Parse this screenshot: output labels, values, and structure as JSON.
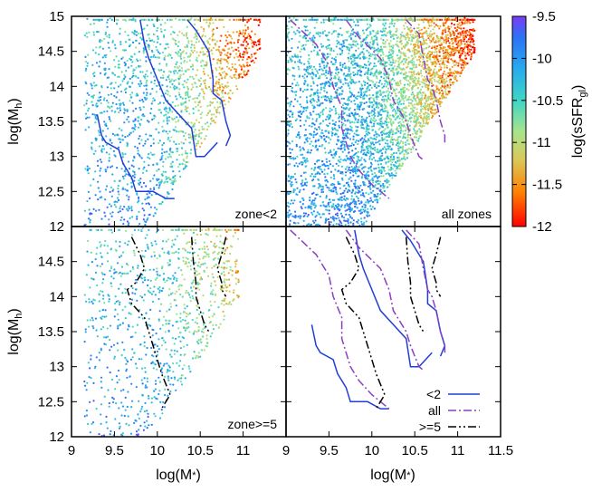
{
  "chart_data": [
    {
      "type": "scatter",
      "panel": "top-left",
      "annotation": "zone<2",
      "ylabel": "log(M_h)",
      "xlim": [
        9,
        11.5
      ],
      "ylim": [
        12,
        15
      ],
      "yticks": [
        "12",
        "12.5",
        "13",
        "13.5",
        "14",
        "14.5",
        "15"
      ],
      "points_colored_by": "log(sSFR_gl)",
      "series": [
        {
          "name": "<2",
          "style": "solid",
          "color": "#1f3fd6",
          "lines": [
            {
              "x": [
                9.8,
                9.85,
                9.9,
                10.0,
                10.1,
                10.25,
                10.4,
                10.45,
                10.55,
                10.55,
                10.7
              ],
              "y": [
                14.95,
                14.6,
                14.4,
                14.1,
                13.8,
                13.6,
                13.4,
                13.0,
                13.0,
                13.0,
                13.2
              ]
            },
            {
              "x": [
                10.35,
                10.45,
                10.6,
                10.65,
                10.65,
                10.75,
                10.8,
                10.85,
                10.8
              ],
              "y": [
                14.95,
                14.8,
                14.5,
                14.1,
                13.9,
                13.8,
                13.5,
                13.3,
                13.15
              ]
            },
            {
              "x": [
                9.3,
                9.35,
                9.4,
                9.55,
                9.6,
                9.7,
                9.75,
                9.95,
                10.1,
                10.2
              ],
              "y": [
                13.6,
                13.3,
                13.2,
                13.1,
                12.9,
                12.7,
                12.5,
                12.5,
                12.4,
                12.4
              ]
            }
          ]
        }
      ]
    },
    {
      "type": "scatter",
      "panel": "top-right",
      "annotation": "all zones",
      "xlim": [
        9,
        11.5
      ],
      "ylim": [
        12,
        15
      ],
      "points_colored_by": "log(sSFR_gl)",
      "series": [
        {
          "name": "all",
          "style": "dash-dot",
          "color": "#8a3fc0",
          "lines": [
            {
              "x": [
                9.05,
                9.35,
                9.5,
                9.55,
                9.65,
                9.65,
                9.75,
                9.85,
                10.0,
                10.1,
                10.2
              ],
              "y": [
                14.95,
                14.6,
                14.3,
                14.0,
                13.7,
                13.4,
                13.0,
                12.8,
                12.6,
                12.5,
                12.4
              ]
            },
            {
              "x": [
                9.7,
                9.85,
                10.1,
                10.2,
                10.25,
                10.4,
                10.45,
                10.55,
                10.6
              ],
              "y": [
                14.95,
                14.7,
                14.4,
                14.1,
                13.8,
                13.5,
                13.3,
                13.0,
                12.95
              ]
            },
            {
              "x": [
                10.4,
                10.55,
                10.6,
                10.65,
                10.7,
                10.75,
                10.8,
                10.85,
                10.85
              ],
              "y": [
                14.95,
                14.75,
                14.4,
                14.1,
                14.0,
                13.8,
                13.5,
                13.3,
                13.2
              ]
            }
          ]
        }
      ]
    },
    {
      "type": "scatter",
      "panel": "bottom-left",
      "annotation": "zone>=5",
      "xlabel": "log(M*)",
      "ylabel": "log(M_h)",
      "xlim": [
        9,
        11.5
      ],
      "ylim": [
        12,
        15
      ],
      "xticks": [
        "9",
        "9.5",
        "10",
        "10.5",
        "11"
      ],
      "yticks": [
        "12",
        "12.5",
        "13",
        "13.5",
        "14",
        "14.5",
        ""
      ],
      "points_colored_by": "log(sSFR_gl)",
      "series": [
        {
          "name": ">=5",
          "style": "dash-dot-dot",
          "color": "#000000",
          "lines": [
            {
              "x": [
                9.7,
                9.8,
                9.85,
                9.75,
                9.65,
                9.7,
                9.85,
                9.9,
                9.95,
                10.0,
                10.05,
                10.15,
                10.05
              ],
              "y": [
                14.85,
                14.6,
                14.4,
                14.2,
                14.1,
                13.9,
                13.7,
                13.5,
                13.3,
                13.1,
                12.9,
                12.6,
                12.4
              ]
            },
            {
              "x": [
                10.4,
                10.42,
                10.45,
                10.45,
                10.5,
                10.55,
                10.6
              ],
              "y": [
                14.85,
                14.5,
                14.2,
                14.0,
                13.8,
                13.6,
                13.5
              ]
            },
            {
              "x": [
                10.8,
                10.75,
                10.7,
                10.75,
                10.75,
                10.8
              ],
              "y": [
                14.85,
                14.6,
                14.4,
                14.2,
                14.1,
                14.0
              ]
            }
          ]
        }
      ]
    },
    {
      "type": "line",
      "panel": "bottom-right",
      "xlabel": "log(M*)",
      "xlim": [
        9,
        11.5
      ],
      "ylim": [
        12,
        15
      ],
      "xticks": [
        "9",
        "9.5",
        "10",
        "10.5",
        "11",
        "11.5"
      ],
      "legend_position": "bottom-right",
      "series": [
        {
          "name": "<2",
          "style": "solid",
          "color": "#1f3fd6"
        },
        {
          "name": "all",
          "style": "dash-dot",
          "color": "#8a3fc0"
        },
        {
          "name": ">=5",
          "style": "dash-dot-dot",
          "color": "#000000"
        }
      ]
    }
  ],
  "colorbar": {
    "label": "log(sSFR_gl)",
    "range": [
      -12,
      -9.5
    ],
    "ticks": [
      "-9.5",
      "-10",
      "-10.5",
      "-11",
      "-11.5",
      "-12"
    ],
    "colormap": [
      "#ff0000",
      "#ff7f00",
      "#d9c95a",
      "#a8e48c",
      "#3fd6c6",
      "#27a7ef",
      "#2c72f5",
      "#7a3cf5"
    ]
  }
}
